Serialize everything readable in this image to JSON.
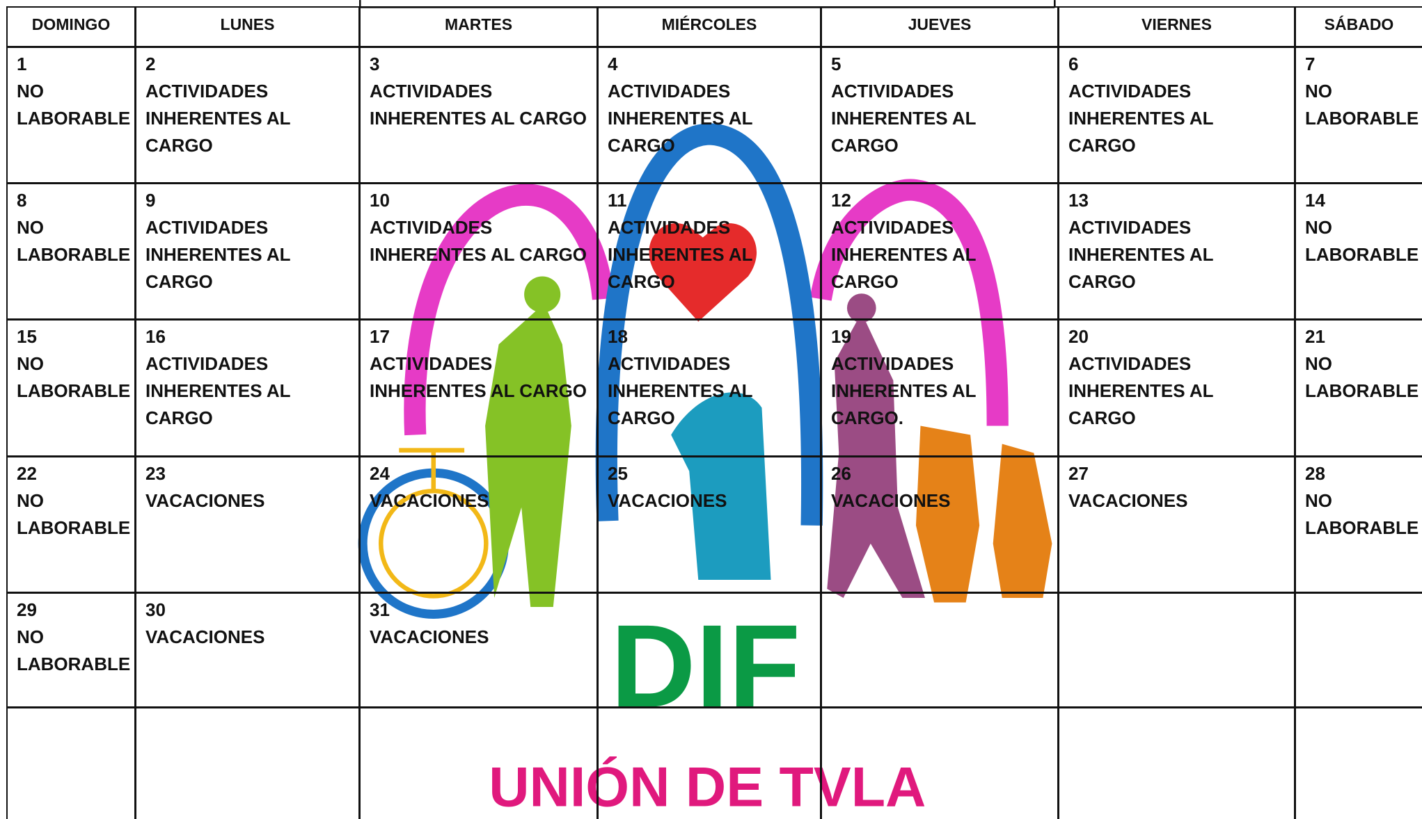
{
  "header": [
    "DOMINGO",
    "LUNES",
    "MARTES",
    "MIÉRCOLES",
    "JUEVES",
    "VIERNES",
    "SÁBADO"
  ],
  "weeks": [
    [
      {
        "day": "1",
        "text": "NO LABORABLE"
      },
      {
        "day": "2",
        "text": "ACTIVIDADES INHERENTES AL CARGO"
      },
      {
        "day": "3",
        "text": "ACTIVIDADES INHERENTES AL CARGO"
      },
      {
        "day": "4",
        "text": "ACTIVIDADES INHERENTES AL CARGO"
      },
      {
        "day": "5",
        "text": "ACTIVIDADES INHERENTES AL CARGO"
      },
      {
        "day": "6",
        "text": "ACTIVIDADES INHERENTES AL CARGO"
      },
      {
        "day": "7",
        "text": "NO LABORABLE"
      }
    ],
    [
      {
        "day": "8",
        "text": "NO LABORABLE"
      },
      {
        "day": "9",
        "text": "ACTIVIDADES INHERENTES AL CARGO"
      },
      {
        "day": "10",
        "text": "ACTIVIDADES INHERENTES AL CARGO"
      },
      {
        "day": "11",
        "text": "ACTIVIDADES INHERENTES AL CARGO"
      },
      {
        "day": "12",
        "text": "ACTIVIDADES INHERENTES AL CARGO"
      },
      {
        "day": "13",
        "text": "ACTIVIDADES INHERENTES AL CARGO"
      },
      {
        "day": "14",
        "text": "NO LABORABLE"
      }
    ],
    [
      {
        "day": "15",
        "text": "NO LABORABLE"
      },
      {
        "day": "16",
        "text": "ACTIVIDADES INHERENTES AL CARGO"
      },
      {
        "day": "17",
        "text": "ACTIVIDADES INHERENTES AL CARGO"
      },
      {
        "day": "18",
        "text": "ACTIVIDADES INHERENTES AL CARGO"
      },
      {
        "day": "19",
        "text": "ACTIVIDADES INHERENTES AL CARGO."
      },
      {
        "day": "20",
        "text": "ACTIVIDADES INHERENTES AL CARGO"
      },
      {
        "day": "21",
        "text": "NO LABORABLE"
      }
    ],
    [
      {
        "day": "22",
        "text": "NO LABORABLE"
      },
      {
        "day": "23",
        "text": "VACACIONES"
      },
      {
        "day": "24",
        "text": "VACACIONES"
      },
      {
        "day": "25",
        "text": "VACACIONES"
      },
      {
        "day": "26",
        "text": "VACACIONES"
      },
      {
        "day": "27",
        "text": "VACACIONES"
      },
      {
        "day": "28",
        "text": "NO LABORABLE"
      }
    ],
    [
      {
        "day": "29",
        "text": "NO LABORABLE"
      },
      {
        "day": "30",
        "text": "VACACIONES"
      },
      {
        "day": "31",
        "text": "VACACIONES"
      },
      null,
      null,
      null,
      null
    ],
    [
      null,
      null,
      null,
      null,
      null,
      null,
      null
    ]
  ],
  "logo": {
    "title": "DIF",
    "subtitle": "UNIÓN DE TVLA"
  }
}
